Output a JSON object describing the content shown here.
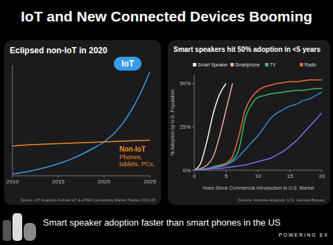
{
  "title": "IoT and New Connected Devices Booming",
  "caption": "Smart speaker adoption faster than smart phones in the US",
  "brand": "POWERING EX",
  "chart_data": [
    {
      "type": "line",
      "title": "Eclipsed non-IoT in 2020",
      "x": [
        2010,
        2011,
        2012,
        2013,
        2014,
        2015,
        2016,
        2017,
        2018,
        2019,
        2020,
        2021,
        2022,
        2023,
        2024,
        2025
      ],
      "series": [
        {
          "name": "IoT",
          "color": "#3a9be8",
          "values": [
            0.5,
            0.9,
            1.4,
            2.0,
            2.7,
            3.5,
            4.4,
            5.5,
            6.8,
            8.2,
            9.8,
            12,
            15,
            19,
            24,
            30
          ]
        },
        {
          "name": "Non-IoT",
          "color": "#f08a24",
          "values": [
            8.6,
            8.8,
            9.0,
            9.1,
            9.2,
            9.3,
            9.4,
            9.5,
            9.6,
            9.7,
            9.8,
            9.9,
            10,
            10.1,
            10.2,
            10.3
          ]
        }
      ],
      "annotations": [
        "Phones, tablets, PCs,"
      ],
      "xlim": [
        2010,
        2025
      ],
      "xticks": [
        2010,
        2015,
        2020,
        2025
      ],
      "ylim": [
        0,
        32
      ],
      "tick_labels": "x",
      "grid": false,
      "source": "Source: IoT Analytics-Cellular IoT & LPWA Connectivity Market Tracker 2010-25"
    },
    {
      "type": "line",
      "title": "Smart speakers hit 50% adoption in <5 years",
      "x": [
        0,
        1,
        2,
        3,
        4,
        5,
        6,
        7,
        8,
        9,
        10,
        11,
        12,
        13,
        14,
        15,
        16,
        17,
        18,
        19,
        20
      ],
      "series": [
        {
          "name": "Smart Speaker",
          "color": "#ffffff",
          "values": [
            0,
            4,
            17,
            33,
            44,
            50,
            null,
            null,
            null,
            null,
            null,
            null,
            null,
            null,
            null,
            null,
            null,
            null,
            null,
            null,
            null
          ]
        },
        {
          "name": "Smartphone",
          "color": "#f4b49a",
          "values": [
            0,
            1,
            3,
            8,
            20,
            35,
            50,
            null,
            null,
            null,
            null,
            null,
            null,
            null,
            null,
            null,
            null,
            null,
            null,
            null,
            null
          ]
        },
        {
          "name": "TV",
          "color": "#3cc060",
          "values": [
            0,
            0.5,
            1,
            2,
            3,
            4,
            6,
            12,
            30,
            38,
            42,
            43,
            44,
            44.5,
            45,
            45.5,
            46,
            46,
            46.5,
            47,
            47
          ]
        },
        {
          "name": "Radio",
          "color": "#f06a3c",
          "values": [
            0,
            0.5,
            1,
            1.5,
            2.5,
            4,
            8,
            20,
            35,
            42,
            46,
            48,
            49,
            50,
            50.5,
            51,
            51,
            51.5,
            52,
            52,
            52
          ]
        },
        {
          "color": "#2e8fe0",
          "values": [
            0,
            0.5,
            1,
            1.5,
            2,
            3,
            5,
            8,
            12,
            16,
            20,
            25,
            30,
            33,
            35,
            37,
            38,
            40,
            41,
            43,
            45
          ]
        },
        {
          "color": "#8a6cf5",
          "values": [
            0,
            0,
            0.5,
            1,
            1,
            1.5,
            2,
            2.5,
            3,
            4,
            5,
            6,
            7,
            9,
            11,
            14,
            17,
            21,
            25,
            29,
            33
          ]
        }
      ],
      "xlim": [
        0,
        20
      ],
      "xticks": [
        0,
        5,
        10,
        15,
        20
      ],
      "ylim": [
        0,
        55
      ],
      "yticks": [
        {
          "value": 0,
          "label": "0%"
        },
        {
          "value": 25,
          "label": "25%"
        },
        {
          "value": 50,
          "label": "50%"
        }
      ],
      "x_label": "Years Since Commercial Introduction to U.S. Market",
      "y_label": "% Adoption by U.S. Population",
      "grid": false,
      "source": "Source: Activate analysis, U.S. Census Bureau"
    }
  ]
}
